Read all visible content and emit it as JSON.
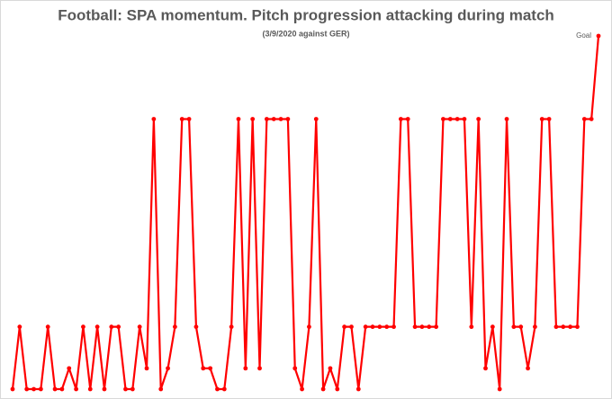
{
  "chart_data": {
    "type": "line",
    "title": "Football: SPA momentum. Pitch progression attacking during match",
    "subtitle": "(3/9/2020 against GER)",
    "annotation": "Goal",
    "color": "#ff0000",
    "ylim": [
      0,
      17
    ],
    "values": [
      0,
      3,
      0,
      0,
      0,
      3,
      0,
      0,
      1,
      0,
      3,
      0,
      3,
      0,
      3,
      3,
      0,
      0,
      3,
      1,
      13,
      0,
      1,
      3,
      13,
      13,
      3,
      1,
      1,
      0,
      0,
      3,
      13,
      1,
      13,
      1,
      13,
      13,
      13,
      13,
      1,
      0,
      3,
      13,
      0,
      1,
      0,
      3,
      3,
      0,
      3,
      3,
      3,
      3,
      3,
      13,
      13,
      3,
      3,
      3,
      3,
      13,
      13,
      13,
      13,
      3,
      13,
      1,
      3,
      0,
      13,
      3,
      3,
      1,
      3,
      13,
      13,
      3,
      3,
      3,
      3,
      13,
      13,
      17
    ]
  }
}
